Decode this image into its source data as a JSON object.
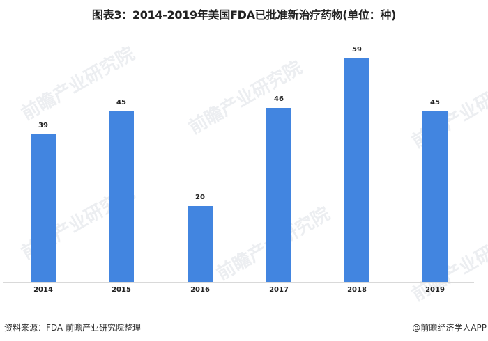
{
  "title": "图表3：2014-2019年美国FDA已批准新治疗药物(单位：种)",
  "footer": {
    "source": "资料来源：FDA 前瞻产业研究院整理",
    "credit": "@前瞻经济学人APP"
  },
  "watermark": "前瞻产业研究院",
  "colors": {
    "bar": "#4285e0",
    "axis": "#d9d9d9"
  },
  "chart_data": {
    "type": "bar",
    "title": "图表3：2014-2019年美国FDA已批准新治疗药物(单位：种)",
    "categories": [
      "2014",
      "2015",
      "2016",
      "2017",
      "2018",
      "2019"
    ],
    "values": [
      39,
      45,
      20,
      46,
      59,
      45
    ],
    "xlabel": "",
    "ylabel": "",
    "unit": "种",
    "ylim": [
      0,
      60
    ],
    "grid": false,
    "legend": null,
    "data_labels": true
  }
}
